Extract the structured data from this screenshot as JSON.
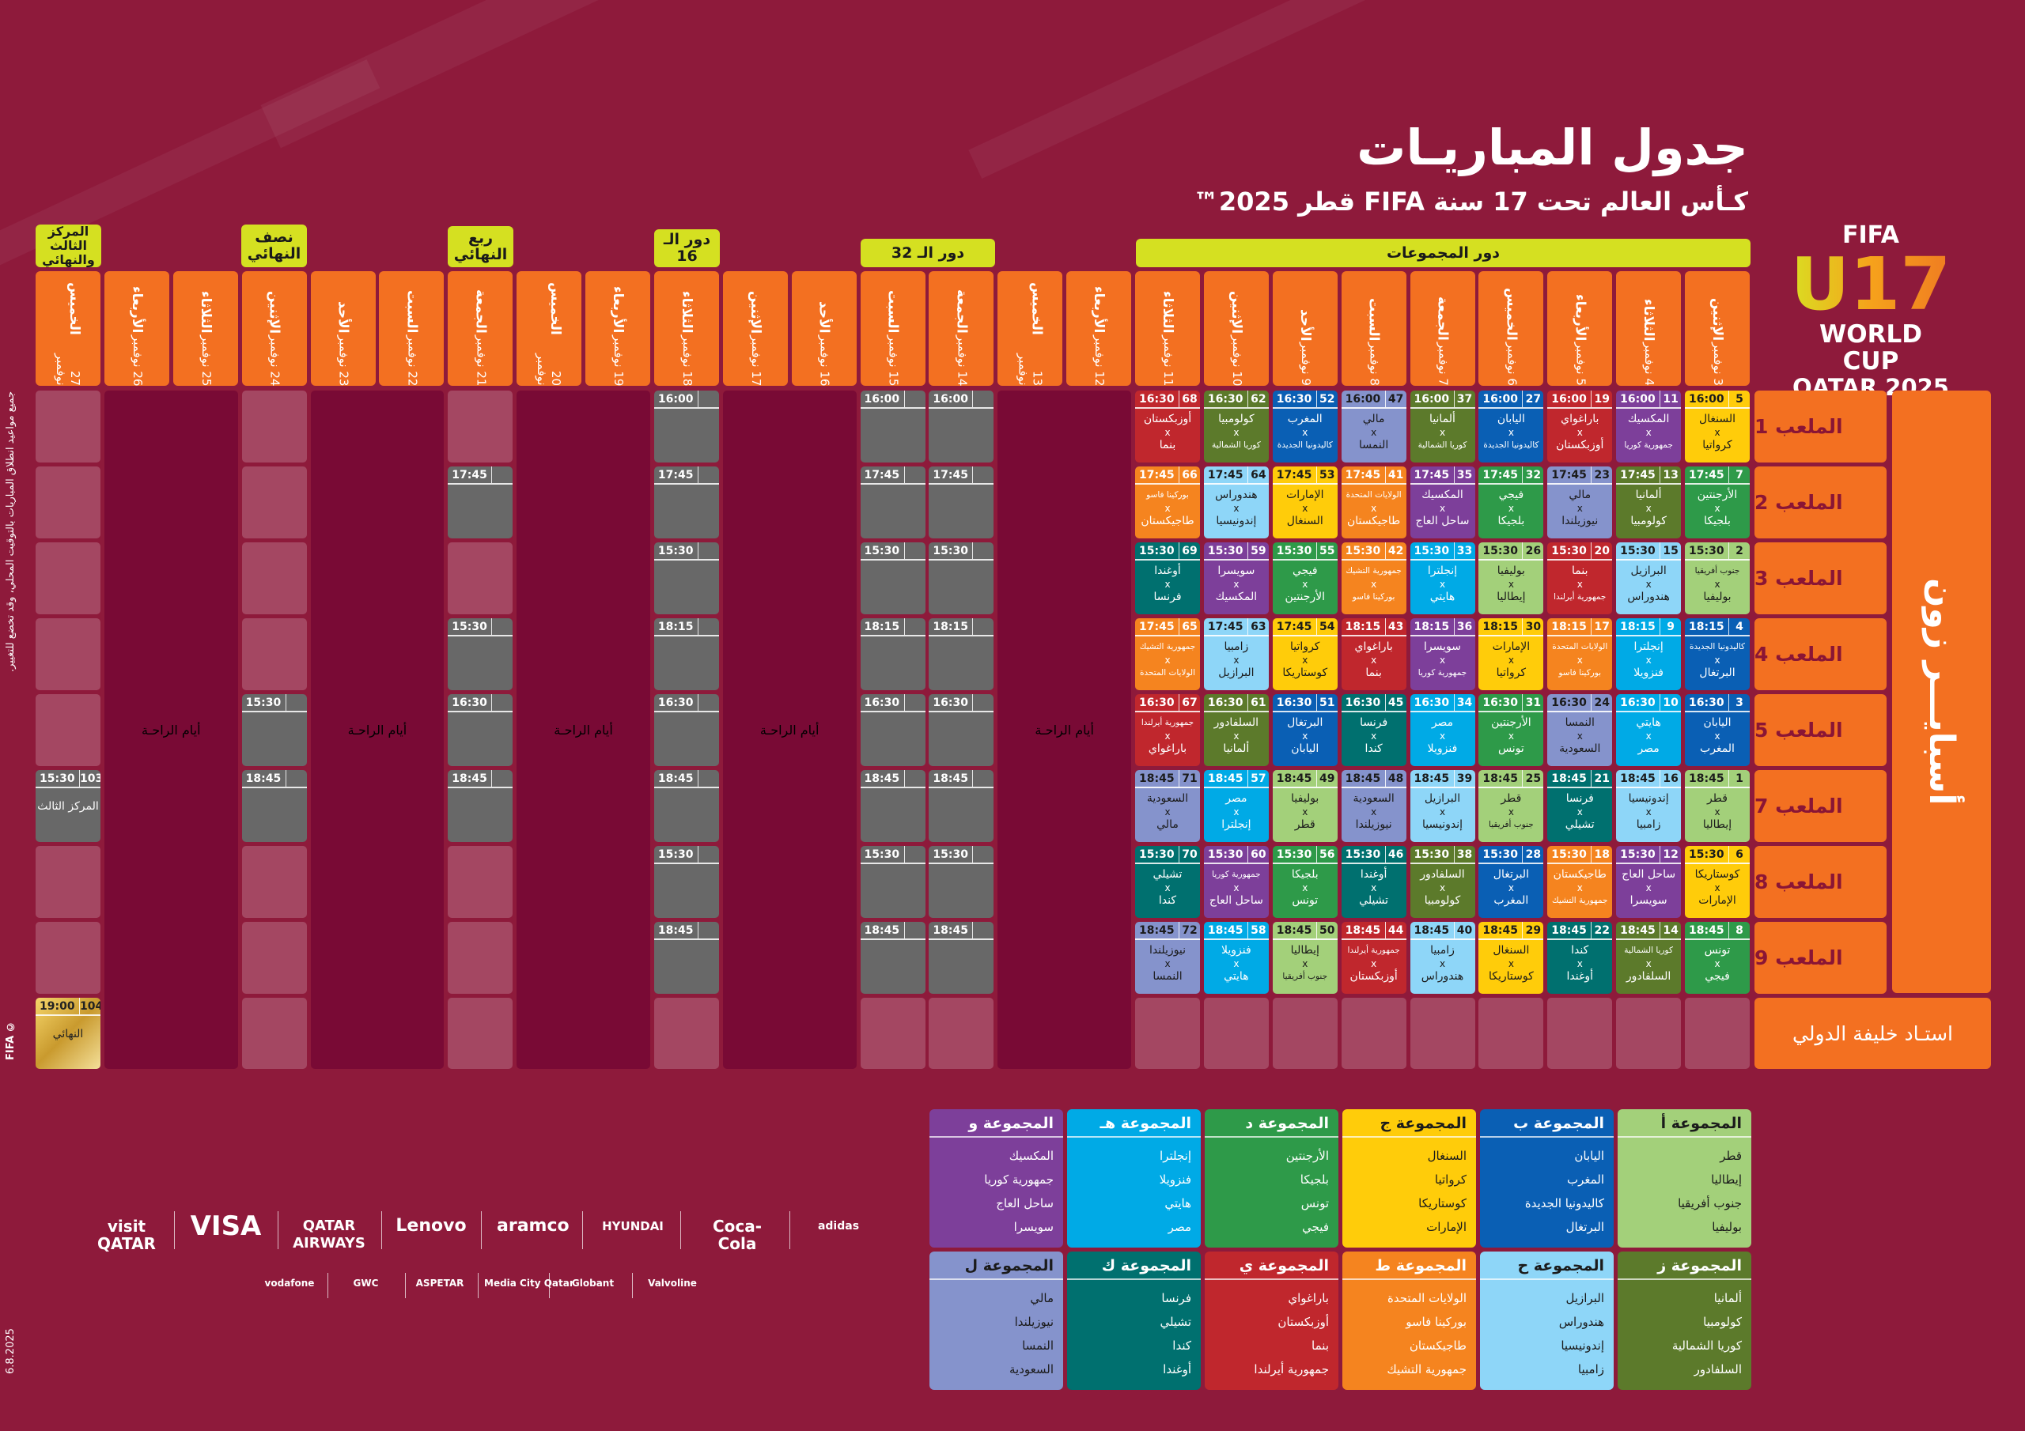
{
  "title": "جدول المباريـات",
  "subtitle": "كـأس العالم تحت 17 سنة FIFA قطر 2025™",
  "logo": {
    "top": "FIFA",
    "mark": "U17",
    "line1": "WORLD CUP",
    "line2": "QATAR 2025",
    "tm": "™"
  },
  "side_note": "جميع مواعيد انطلاق المباريات بالتوقيت المحلي، وقد تخضع للتغيير.",
  "copyright": "© FIFA",
  "date_stamp": "6.8.2025",
  "phases": {
    "group": "دور المجموعات",
    "r32": "دور الـ 32",
    "r16": "دور الـ 16",
    "qf": "ربع النهائي",
    "sf": "نصف النهائي",
    "final": "المركز الثالث والنهائي"
  },
  "rest_label": "أيام الراحـة",
  "venues": {
    "aspire": "أسبايـــر زون",
    "pitches": [
      "الملعب 1",
      "الملعب 2",
      "الملعب 3",
      "الملعب 4",
      "الملعب 5",
      "الملعب 7",
      "الملعب 8",
      "الملعب 9"
    ],
    "khalifa": "استـاد خليفة الدولي"
  },
  "days": [
    {
      "name": "الإثنين",
      "date": "3 نوفمبر"
    },
    {
      "name": "الثلاثاء",
      "date": "4 نوفمبر"
    },
    {
      "name": "الأربعاء",
      "date": "5 نوفمبر"
    },
    {
      "name": "الخميس",
      "date": "6 نوفمبر"
    },
    {
      "name": "الجمعة",
      "date": "7 نوفمبر"
    },
    {
      "name": "السبت",
      "date": "8 نوفمبر"
    },
    {
      "name": "الأحد",
      "date": "9 نوفمبر"
    },
    {
      "name": "الإثنين",
      "date": "10 نوفمبر"
    },
    {
      "name": "الثلاثاء",
      "date": "11 نوفمبر"
    },
    {
      "name": "الأربعاء",
      "date": "12 نوفمبر"
    },
    {
      "name": "الخميس",
      "date": "13 نوفمبر"
    },
    {
      "name": "الجمعة",
      "date": "14 نوفمبر"
    },
    {
      "name": "السبت",
      "date": "15 نوفمبر"
    },
    {
      "name": "الأحد",
      "date": "16 نوفمبر"
    },
    {
      "name": "الإثنين",
      "date": "17 نوفمبر"
    },
    {
      "name": "الثلاثاء",
      "date": "18 نوفمبر"
    },
    {
      "name": "الأربعاء",
      "date": "19 نوفمبر"
    },
    {
      "name": "الخميس",
      "date": "20 نوفمبر"
    },
    {
      "name": "الجمعة",
      "date": "21 نوفمبر"
    },
    {
      "name": "السبت",
      "date": "22 نوفمبر"
    },
    {
      "name": "الأحد",
      "date": "23 نوفمبر"
    },
    {
      "name": "الإثنين",
      "date": "24 نوفمبر"
    },
    {
      "name": "الثلاثاء",
      "date": "25 نوفمبر"
    },
    {
      "name": "الأربعاء",
      "date": "26 نوفمبر"
    },
    {
      "name": "الخميس",
      "date": "27 نوفمبر"
    }
  ],
  "group_colors": [
    "#a3d07a",
    "#0a5fb4",
    "#ffcc0a",
    "#2e9a49",
    "#00aae6",
    "#7d3f9a",
    "#5c7a2b",
    "#8ed6f8",
    "#f5841f",
    "#c0272d",
    "#00706f",
    "#8593cc"
  ],
  "group_dark_text": [
    true,
    false,
    true,
    false,
    false,
    false,
    false,
    true,
    false,
    false,
    false,
    true
  ],
  "group_stage": [
    [
      {
        "time": "16:00",
        "no": "5",
        "home": "السنغال",
        "away": "كرواتيا",
        "g": 2
      },
      {
        "time": "17:45",
        "no": "7",
        "home": "الأرجنتين",
        "away": "بلجيكا",
        "g": 3
      },
      {
        "time": "15:30",
        "no": "2",
        "home": "جنوب أفريقيا",
        "away": "بوليفيا",
        "g": 0
      },
      {
        "time": "18:15",
        "no": "4",
        "home": "كاليدونيا الجديدة",
        "away": "البرتغال",
        "g": 1
      },
      {
        "time": "16:30",
        "no": "3",
        "home": "اليابان",
        "away": "المغرب",
        "g": 1
      },
      {
        "time": "18:45",
        "no": "1",
        "home": "قطر",
        "away": "إيطاليا",
        "g": 0
      },
      {
        "time": "15:30",
        "no": "6",
        "home": "كوستاريكا",
        "away": "الإمارات",
        "g": 2
      },
      {
        "time": "18:45",
        "no": "8",
        "home": "تونس",
        "away": "فيجي",
        "g": 3
      }
    ],
    [
      {
        "time": "16:00",
        "no": "11",
        "home": "المكسيك",
        "away": "جمهورية كوريا",
        "g": 5
      },
      {
        "time": "17:45",
        "no": "13",
        "home": "ألمانيا",
        "away": "كولومبيا",
        "g": 6
      },
      {
        "time": "15:30",
        "no": "15",
        "home": "البرازيل",
        "away": "هندوراس",
        "g": 7
      },
      {
        "time": "18:15",
        "no": "9",
        "home": "إنجلترا",
        "away": "فنزويلا",
        "g": 4
      },
      {
        "time": "16:30",
        "no": "10",
        "home": "هايتي",
        "away": "مصر",
        "g": 4
      },
      {
        "time": "18:45",
        "no": "16",
        "home": "إندونيسيا",
        "away": "زامبيا",
        "g": 7
      },
      {
        "time": "15:30",
        "no": "12",
        "home": "ساحل العاج",
        "away": "سويسرا",
        "g": 5
      },
      {
        "time": "18:45",
        "no": "14",
        "home": "كوريا الشمالية",
        "away": "السلفادور",
        "g": 6
      }
    ],
    [
      {
        "time": "16:00",
        "no": "19",
        "home": "باراغواي",
        "away": "أوزبكستان",
        "g": 9
      },
      {
        "time": "17:45",
        "no": "23",
        "home": "مالي",
        "away": "نيوزيلندا",
        "g": 11
      },
      {
        "time": "15:30",
        "no": "20",
        "home": "بنما",
        "away": "جمهورية أيرلندا",
        "g": 9
      },
      {
        "time": "18:15",
        "no": "17",
        "home": "الولايات المتحدة",
        "away": "بوركينا فاسو",
        "g": 8
      },
      {
        "time": "16:30",
        "no": "24",
        "home": "النمسا",
        "away": "السعودية",
        "g": 11
      },
      {
        "time": "18:45",
        "no": "21",
        "home": "فرنسا",
        "away": "تشيلي",
        "g": 10
      },
      {
        "time": "15:30",
        "no": "18",
        "home": "طاجيكستان",
        "away": "جمهورية التشيك",
        "g": 8
      },
      {
        "time": "18:45",
        "no": "22",
        "home": "كندا",
        "away": "أوغندا",
        "g": 10
      }
    ],
    [
      {
        "time": "16:00",
        "no": "27",
        "home": "اليابان",
        "away": "كاليدونيا الجديدة",
        "g": 1
      },
      {
        "time": "17:45",
        "no": "32",
        "home": "فيجي",
        "away": "بلجيكا",
        "g": 3
      },
      {
        "time": "15:30",
        "no": "26",
        "home": "بوليفيا",
        "away": "إيطاليا",
        "g": 0
      },
      {
        "time": "18:15",
        "no": "30",
        "home": "الإمارات",
        "away": "كرواتيا",
        "g": 2
      },
      {
        "time": "16:30",
        "no": "31",
        "home": "الأرجنتين",
        "away": "تونس",
        "g": 3
      },
      {
        "time": "18:45",
        "no": "25",
        "home": "قطر",
        "away": "جنوب أفريقيا",
        "g": 0
      },
      {
        "time": "15:30",
        "no": "28",
        "home": "البرتغال",
        "away": "المغرب",
        "g": 1
      },
      {
        "time": "18:45",
        "no": "29",
        "home": "السنغال",
        "away": "كوستاريكا",
        "g": 2
      }
    ],
    [
      {
        "time": "16:00",
        "no": "37",
        "home": "ألمانيا",
        "away": "كوريا الشمالية",
        "g": 6
      },
      {
        "time": "17:45",
        "no": "35",
        "home": "المكسيك",
        "away": "ساحل العاج",
        "g": 5
      },
      {
        "time": "15:30",
        "no": "33",
        "home": "إنجلترا",
        "away": "هايتي",
        "g": 4
      },
      {
        "time": "18:15",
        "no": "36",
        "home": "سويسرا",
        "away": "جمهورية كوريا",
        "g": 5
      },
      {
        "time": "16:30",
        "no": "34",
        "home": "مصر",
        "away": "فنزويلا",
        "g": 4
      },
      {
        "time": "18:45",
        "no": "39",
        "home": "البرازيل",
        "away": "إندونيسيا",
        "g": 7
      },
      {
        "time": "15:30",
        "no": "38",
        "home": "السلفادور",
        "away": "كولومبيا",
        "g": 6
      },
      {
        "time": "18:45",
        "no": "40",
        "home": "زامبيا",
        "away": "هندوراس",
        "g": 7
      }
    ],
    [
      {
        "time": "16:00",
        "no": "47",
        "home": "مالي",
        "away": "النمسا",
        "g": 11
      },
      {
        "time": "17:45",
        "no": "41",
        "home": "الولايات المتحدة",
        "away": "طاجيكستان",
        "g": 8
      },
      {
        "time": "15:30",
        "no": "42",
        "home": "جمهورية التشيك",
        "away": "بوركينا فاسو",
        "g": 8
      },
      {
        "time": "18:15",
        "no": "43",
        "home": "باراغواي",
        "away": "بنما",
        "g": 9
      },
      {
        "time": "16:30",
        "no": "45",
        "home": "فرنسا",
        "away": "كندا",
        "g": 10
      },
      {
        "time": "18:45",
        "no": "48",
        "home": "السعودية",
        "away": "نيوزيلندا",
        "g": 11
      },
      {
        "time": "15:30",
        "no": "46",
        "home": "أوغندا",
        "away": "تشيلي",
        "g": 10
      },
      {
        "time": "18:45",
        "no": "44",
        "home": "جمهورية أيرلندا",
        "away": "أوزبكستان",
        "g": 9
      }
    ],
    [
      {
        "time": "16:30",
        "no": "52",
        "home": "المغرب",
        "away": "كاليدونيا الجديدة",
        "g": 1
      },
      {
        "time": "17:45",
        "no": "53",
        "home": "الإمارات",
        "away": "السنغال",
        "g": 2
      },
      {
        "time": "15:30",
        "no": "55",
        "home": "فيجي",
        "away": "الأرجنتين",
        "g": 3
      },
      {
        "time": "17:45",
        "no": "54",
        "home": "كرواتيا",
        "away": "كوستاريكا",
        "g": 2
      },
      {
        "time": "16:30",
        "no": "51",
        "home": "البرتغال",
        "away": "اليابان",
        "g": 1
      },
      {
        "time": "18:45",
        "no": "49",
        "home": "بوليفيا",
        "away": "قطر",
        "g": 0
      },
      {
        "time": "15:30",
        "no": "56",
        "home": "بلجيكا",
        "away": "تونس",
        "g": 3
      },
      {
        "time": "18:45",
        "no": "50",
        "home": "إيطاليا",
        "away": "جنوب أفريقيا",
        "g": 0
      }
    ],
    [
      {
        "time": "16:30",
        "no": "62",
        "home": "كولومبيا",
        "away": "كوريا الشمالية",
        "g": 6
      },
      {
        "time": "17:45",
        "no": "64",
        "home": "هندوراس",
        "away": "إندونيسيا",
        "g": 7
      },
      {
        "time": "15:30",
        "no": "59",
        "home": "سويسرا",
        "away": "المكسيك",
        "g": 5
      },
      {
        "time": "17:45",
        "no": "63",
        "home": "زامبيا",
        "away": "البرازيل",
        "g": 7
      },
      {
        "time": "16:30",
        "no": "61",
        "home": "السلفادور",
        "away": "ألمانيا",
        "g": 6
      },
      {
        "time": "18:45",
        "no": "57",
        "home": "مصر",
        "away": "إنجلترا",
        "g": 4
      },
      {
        "time": "15:30",
        "no": "60",
        "home": "جمهورية كوريا",
        "away": "ساحل العاج",
        "g": 5
      },
      {
        "time": "18:45",
        "no": "58",
        "home": "فنزويلا",
        "away": "هايتي",
        "g": 4
      }
    ],
    [
      {
        "time": "16:30",
        "no": "68",
        "home": "أوزبكستان",
        "away": "بنما",
        "g": 9
      },
      {
        "time": "17:45",
        "no": "66",
        "home": "بوركينا فاسو",
        "away": "طاجيكستان",
        "g": 8
      },
      {
        "time": "15:30",
        "no": "69",
        "home": "أوغندا",
        "away": "فرنسا",
        "g": 10
      },
      {
        "time": "17:45",
        "no": "65",
        "home": "جمهورية التشيك",
        "away": "الولايات المتحدة",
        "g": 8
      },
      {
        "time": "16:30",
        "no": "67",
        "home": "جمهورية أيرلندا",
        "away": "باراغواي",
        "g": 9
      },
      {
        "time": "18:45",
        "no": "71",
        "home": "السعودية",
        "away": "مالي",
        "g": 11
      },
      {
        "time": "15:30",
        "no": "70",
        "home": "تشيلي",
        "away": "كندا",
        "g": 10
      },
      {
        "time": "18:45",
        "no": "72",
        "home": "نيوزيلندا",
        "away": "النمسا",
        "g": 11
      }
    ]
  ],
  "knockout": [
    {
      "day": 11,
      "slots": [
        {
          "row": 0,
          "time": "16:00"
        },
        {
          "row": 1,
          "time": "17:45"
        },
        {
          "row": 2,
          "time": "15:30"
        },
        {
          "row": 3,
          "time": "18:15"
        },
        {
          "row": 4,
          "time": "16:30"
        },
        {
          "row": 5,
          "time": "18:45"
        },
        {
          "row": 6,
          "time": "15:30"
        },
        {
          "row": 7,
          "time": "18:45"
        }
      ]
    },
    {
      "day": 12,
      "slots": [
        {
          "row": 0,
          "time": "16:00"
        },
        {
          "row": 1,
          "time": "17:45"
        },
        {
          "row": 2,
          "time": "15:30"
        },
        {
          "row": 3,
          "time": "18:15"
        },
        {
          "row": 4,
          "time": "16:30"
        },
        {
          "row": 5,
          "time": "18:45"
        },
        {
          "row": 6,
          "time": "15:30"
        },
        {
          "row": 7,
          "time": "18:45"
        }
      ]
    },
    {
      "day": 15,
      "slots": [
        {
          "row": 0,
          "time": "16:00"
        },
        {
          "row": 1,
          "time": "17:45"
        },
        {
          "row": 2,
          "time": "15:30"
        },
        {
          "row": 3,
          "time": "18:15"
        },
        {
          "row": 4,
          "time": "16:30"
        },
        {
          "row": 5,
          "time": "18:45"
        },
        {
          "row": 6,
          "time": "15:30"
        },
        {
          "row": 7,
          "time": "18:45"
        }
      ]
    },
    {
      "day": 18,
      "slots": [
        {
          "row": 1,
          "time": "17:45"
        },
        {
          "row": 3,
          "time": "15:30"
        },
        {
          "row": 4,
          "time": "16:30"
        },
        {
          "row": 5,
          "time": "18:45"
        }
      ]
    },
    {
      "day": 21,
      "slots": [
        {
          "row": 4,
          "time": "15:30"
        },
        {
          "row": 5,
          "time": "18:45"
        }
      ]
    },
    {
      "day": 24,
      "slots": [
        {
          "row": 5,
          "time": "15:30",
          "no": "103",
          "label": "المركز الثالث"
        },
        {
          "row": 8,
          "time": "19:00",
          "no": "104",
          "label": "النهائي",
          "gold": true
        }
      ]
    }
  ],
  "rest_periods": [
    9,
    13,
    16,
    19,
    22
  ],
  "groups": [
    {
      "name": "المجموعة أ",
      "teams": [
        "قطر",
        "إيطاليا",
        "جنوب أفريقيا",
        "بوليفيا"
      ]
    },
    {
      "name": "المجموعة ب",
      "teams": [
        "اليابان",
        "المغرب",
        "كاليدونيا الجديدة",
        "البرتغال"
      ]
    },
    {
      "name": "المجموعة ج",
      "teams": [
        "السنغال",
        "كرواتيا",
        "كوستاريكا",
        "الإمارات"
      ]
    },
    {
      "name": "المجموعة د",
      "teams": [
        "الأرجنتين",
        "بلجيكا",
        "تونس",
        "فيجي"
      ]
    },
    {
      "name": "المجموعة هـ",
      "teams": [
        "إنجلترا",
        "فنزويلا",
        "هايتي",
        "مصر"
      ]
    },
    {
      "name": "المجموعة و",
      "teams": [
        "المكسيك",
        "جمهورية كوريا",
        "ساحل العاج",
        "سويسرا"
      ]
    },
    {
      "name": "المجموعة ز",
      "teams": [
        "ألمانيا",
        "كولومبيا",
        "كوريا الشمالية",
        "السلفادور"
      ]
    },
    {
      "name": "المجموعة ح",
      "teams": [
        "البرازيل",
        "هندوراس",
        "إندونيسيا",
        "زامبيا"
      ]
    },
    {
      "name": "المجموعة ط",
      "teams": [
        "الولايات المتحدة",
        "بوركينا فاسو",
        "طاجيكستان",
        "جمهورية التشيك"
      ]
    },
    {
      "name": "المجموعة ي",
      "teams": [
        "باراغواي",
        "أوزبكستان",
        "بنما",
        "جمهورية أيرلندا"
      ]
    },
    {
      "name": "المجموعة ك",
      "teams": [
        "فرنسا",
        "تشيلي",
        "كندا",
        "أوغندا"
      ]
    },
    {
      "name": "المجموعة ل",
      "teams": [
        "مالي",
        "نيوزيلندا",
        "النمسا",
        "السعودية"
      ]
    }
  ],
  "sponsors_main": [
    "visit QATAR",
    "VISA",
    "QATAR AIRWAYS",
    "Lenovo",
    "aramco",
    "HYUNDAI",
    "Coca-Cola",
    "adidas"
  ],
  "sponsors_support": [
    "vodafone",
    "GWC",
    "ASPETAR",
    "Media City Qatar",
    "Globant",
    "Valvoline"
  ],
  "x_sep": "x"
}
